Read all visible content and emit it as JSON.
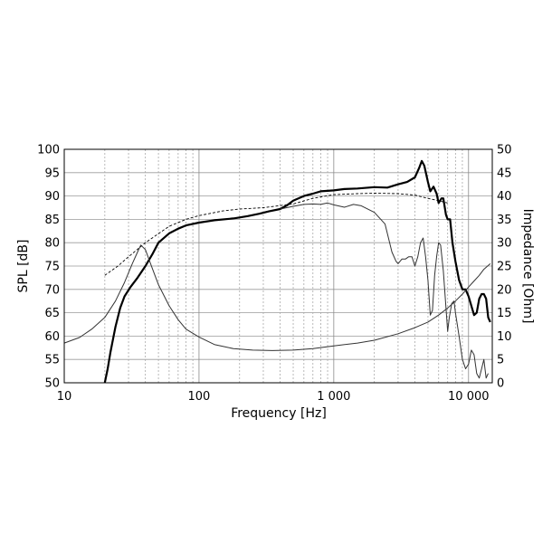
{
  "chart_data": {
    "type": "line",
    "xlabel": "Frequency [Hz]",
    "ylabel": "SPL [dB]",
    "y2label": "Impedance [Ohm]",
    "x_scale": "log",
    "xlim": [
      10,
      15000
    ],
    "ylim": [
      50,
      100
    ],
    "y2lim": [
      0,
      50
    ],
    "x_ticks": [
      10,
      100,
      1000,
      10000
    ],
    "x_tick_labels": [
      "10",
      "100",
      "1 000",
      "10 000"
    ],
    "y_ticks": [
      50,
      55,
      60,
      65,
      70,
      75,
      80,
      85,
      90,
      95,
      100
    ],
    "y_tick_labels": [
      "50",
      "55",
      "60",
      "65",
      "70",
      "75",
      "80",
      "85",
      "90",
      "95",
      "100"
    ],
    "y2_ticks": [
      0,
      5,
      10,
      15,
      20,
      25,
      30,
      35,
      40,
      45,
      50
    ],
    "y2_tick_labels": [
      "0",
      "5",
      "10",
      "15",
      "20",
      "25",
      "30",
      "35",
      "40",
      "45",
      "50"
    ],
    "grid": true,
    "series": [
      {
        "axis": "left",
        "style": "thick",
        "points": [
          [
            20,
            50
          ],
          [
            21,
            53
          ],
          [
            22,
            56.5
          ],
          [
            24,
            62
          ],
          [
            26,
            66
          ],
          [
            28,
            68.5
          ],
          [
            31,
            70.5
          ],
          [
            35,
            72.5
          ],
          [
            40,
            75
          ],
          [
            45,
            77.5
          ],
          [
            50,
            80
          ],
          [
            60,
            82
          ],
          [
            70,
            83
          ],
          [
            80,
            83.7
          ],
          [
            100,
            84.3
          ],
          [
            130,
            84.8
          ],
          [
            180,
            85.2
          ],
          [
            230,
            85.7
          ],
          [
            280,
            86.2
          ],
          [
            330,
            86.7
          ],
          [
            400,
            87.2
          ],
          [
            450,
            88
          ],
          [
            500,
            89
          ],
          [
            600,
            90
          ],
          [
            700,
            90.5
          ],
          [
            800,
            91
          ],
          [
            900,
            91.1
          ],
          [
            1000,
            91.2
          ],
          [
            1200,
            91.5
          ],
          [
            1500,
            91.6
          ],
          [
            2000,
            91.9
          ],
          [
            2500,
            91.8
          ],
          [
            3000,
            92.5
          ],
          [
            3500,
            93
          ],
          [
            4000,
            94
          ],
          [
            4300,
            96
          ],
          [
            4500,
            97.5
          ],
          [
            4700,
            96.5
          ],
          [
            5000,
            93
          ],
          [
            5200,
            91
          ],
          [
            5500,
            92
          ],
          [
            5800,
            90.5
          ],
          [
            6000,
            88.5
          ],
          [
            6300,
            89.5
          ],
          [
            6500,
            89.5
          ],
          [
            6800,
            86
          ],
          [
            7000,
            85
          ],
          [
            7300,
            85
          ],
          [
            7600,
            80
          ],
          [
            8000,
            76
          ],
          [
            8500,
            72
          ],
          [
            9000,
            70
          ],
          [
            9500,
            70
          ],
          [
            10000,
            68.5
          ],
          [
            11000,
            64.5
          ],
          [
            11500,
            65
          ],
          [
            12000,
            68
          ],
          [
            12500,
            69
          ],
          [
            13000,
            69
          ],
          [
            13500,
            68
          ],
          [
            14000,
            64
          ],
          [
            14500,
            63
          ]
        ]
      },
      {
        "axis": "left",
        "style": "dashed",
        "points": [
          [
            20,
            73
          ],
          [
            25,
            75
          ],
          [
            30,
            77
          ],
          [
            40,
            80
          ],
          [
            60,
            83.5
          ],
          [
            80,
            85
          ],
          [
            100,
            85.8
          ],
          [
            150,
            86.8
          ],
          [
            200,
            87.2
          ],
          [
            300,
            87.5
          ],
          [
            500,
            88.3
          ],
          [
            700,
            89.5
          ],
          [
            1000,
            90.3
          ],
          [
            1500,
            90.5
          ],
          [
            2000,
            90.6
          ],
          [
            3000,
            90.5
          ],
          [
            4000,
            90.2
          ],
          [
            5000,
            89.5
          ],
          [
            6000,
            89
          ],
          [
            7000,
            88.5
          ]
        ]
      },
      {
        "axis": "left",
        "style": "thin",
        "points": [
          [
            400,
            87.2
          ],
          [
            500,
            87.8
          ],
          [
            600,
            88.2
          ],
          [
            700,
            88.3
          ],
          [
            800,
            88.2
          ],
          [
            900,
            88.5
          ],
          [
            1000,
            88.1
          ],
          [
            1200,
            87.6
          ],
          [
            1400,
            88.2
          ],
          [
            1600,
            87.9
          ],
          [
            2000,
            86.5
          ],
          [
            2400,
            84
          ],
          [
            2700,
            78
          ],
          [
            2900,
            76
          ],
          [
            3000,
            75.5
          ],
          [
            3200,
            76.5
          ],
          [
            3400,
            76.5
          ],
          [
            3600,
            77
          ],
          [
            3800,
            77
          ],
          [
            4000,
            75
          ],
          [
            4200,
            77
          ],
          [
            4400,
            80
          ],
          [
            4600,
            81
          ],
          [
            4800,
            77
          ],
          [
            5000,
            72
          ],
          [
            5200,
            64.5
          ],
          [
            5400,
            65.5
          ],
          [
            5600,
            73
          ],
          [
            5800,
            77
          ],
          [
            6000,
            80
          ],
          [
            6200,
            79.5
          ],
          [
            6500,
            74
          ],
          [
            7000,
            61
          ],
          [
            7200,
            64
          ],
          [
            7500,
            67
          ],
          [
            7800,
            67.5
          ],
          [
            8000,
            65
          ],
          [
            8500,
            60
          ],
          [
            9000,
            55
          ],
          [
            9500,
            53
          ],
          [
            10000,
            54
          ],
          [
            10500,
            57
          ],
          [
            11000,
            56
          ],
          [
            11500,
            52
          ],
          [
            12000,
            51
          ],
          [
            12500,
            53
          ],
          [
            13000,
            55
          ],
          [
            13500,
            51
          ],
          [
            14000,
            52
          ]
        ]
      },
      {
        "axis": "right",
        "style": "thin",
        "points": [
          [
            10,
            8.5
          ],
          [
            13,
            9.7
          ],
          [
            16,
            11.5
          ],
          [
            20,
            14
          ],
          [
            24,
            17.5
          ],
          [
            28,
            21.5
          ],
          [
            32,
            25.5
          ],
          [
            35,
            28
          ],
          [
            37,
            29.5
          ],
          [
            40,
            28.5
          ],
          [
            45,
            24.5
          ],
          [
            50,
            21
          ],
          [
            60,
            16.5
          ],
          [
            70,
            13.5
          ],
          [
            80,
            11.5
          ],
          [
            100,
            9.8
          ],
          [
            130,
            8.2
          ],
          [
            180,
            7.3
          ],
          [
            250,
            7
          ],
          [
            350,
            6.9
          ],
          [
            500,
            7
          ],
          [
            700,
            7.3
          ],
          [
            1000,
            7.9
          ],
          [
            1500,
            8.5
          ],
          [
            2000,
            9.1
          ],
          [
            3000,
            10.5
          ],
          [
            4000,
            11.8
          ],
          [
            5000,
            13
          ],
          [
            6000,
            14.5
          ],
          [
            7000,
            16
          ],
          [
            8000,
            17.5
          ],
          [
            9000,
            19
          ],
          [
            10000,
            20.5
          ],
          [
            11000,
            21.8
          ],
          [
            12000,
            23
          ],
          [
            13000,
            24.3
          ],
          [
            14500,
            25.5
          ]
        ]
      }
    ]
  }
}
